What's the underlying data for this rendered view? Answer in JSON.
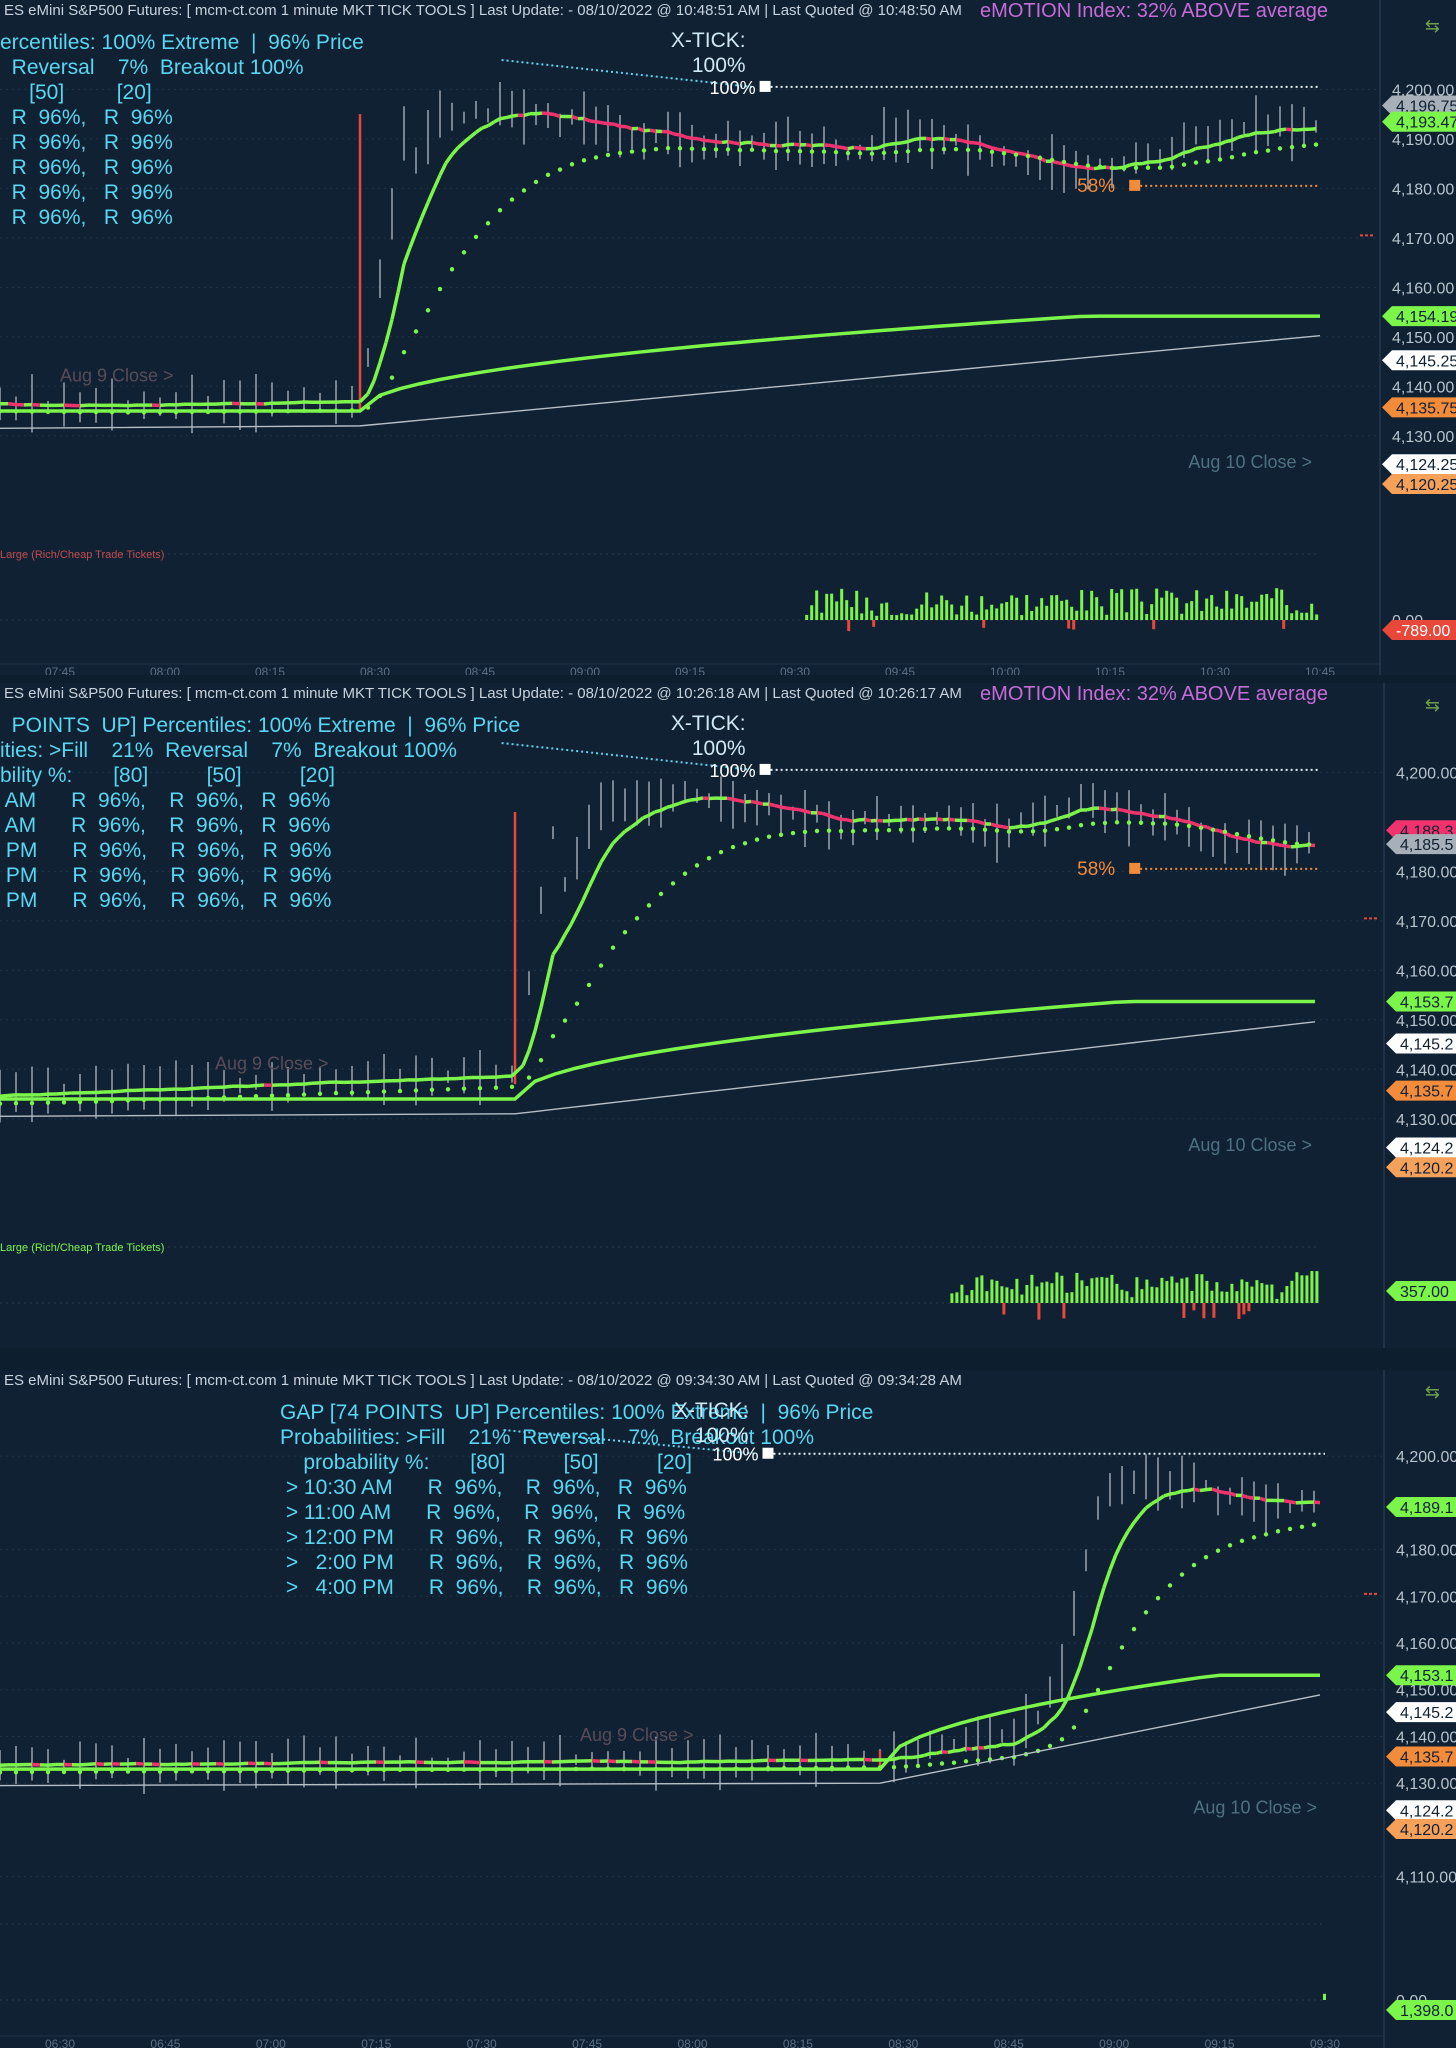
{
  "theme": {
    "bg": "#0f2133",
    "green": "#7cf54a",
    "red": "#f0336e",
    "gray": "#a7b0b8",
    "cyan": "#59d7f2",
    "orange": "#f28b3a",
    "purple": "#c76bd8",
    "neg": "#e8483a"
  },
  "panels": [
    {
      "header": "ES eMini S&P500 Futures: [ mcm-ct.com 1 minute MKT TICK TOOLS ] Last Update:  - 08/10/2022 @ 10:48:51 AM | Last Quoted @ 10:48:50 AM",
      "emotion": "eMOTION Index: 32% ABOVE average",
      "info_lines": [
        "ercentiles: 100% Extreme  |  96% Price",
        "  Reversal    7%  Breakout 100%",
        "     [50]         [20]",
        "  R  96%,   R  96%",
        "  R  96%,   R  96%",
        "  R  96%,   R  96%",
        "  R  96%,   R  96%",
        "  R  96%,   R  96%"
      ],
      "xtick": {
        "label": "X-TICK:",
        "pct": "100%",
        "marker": "100%"
      },
      "pct_label": "58%",
      "aug9_label": "Aug 9 Close >",
      "aug10_label": "Aug 10 Close >",
      "vol_label": "Large (Rich/Cheap Trade Tickets)",
      "price_ticks": [
        "4,200.00",
        "4,190.00",
        "4,180.00",
        "4,170.00",
        "4,160.00",
        "4,150.00",
        "4,140.00",
        "4,130.00"
      ],
      "price_tags": [
        {
          "text": "4,196.75",
          "color": "#a7b0b8"
        },
        {
          "text": "4,193.47",
          "color": "#7cf54a"
        },
        {
          "text": "4,154.19",
          "color": "#7cf54a"
        },
        {
          "text": "4,145.25",
          "color": "#ffffff"
        },
        {
          "text": "4,135.75",
          "color": "#f28b3a"
        },
        {
          "text": "4,124.25",
          "color": "#ffffff"
        },
        {
          "text": "4,120.25",
          "color": "#f5a15a"
        }
      ],
      "vol_ticks": [
        "0.00"
      ],
      "vol_tag": {
        "text": "-789.00",
        "color": "#e8483a"
      },
      "time_labels": [
        "07:45",
        "08:00",
        "08:15",
        "08:30",
        "08:45",
        "09:00",
        "09:15",
        "09:30",
        "09:45",
        "10:00",
        "10:15",
        "10:30",
        "10:45"
      ]
    },
    {
      "header": "ES eMini S&P500 Futures: [ mcm-ct.com 1 minute MKT TICK TOOLS ] Last Update:  - 08/10/2022 @ 10:26:18 AM | Last Quoted @ 10:26:17 AM",
      "emotion": "eMOTION Index: 32% ABOVE average",
      "info_lines": [
        "  POINTS  UP] Percentiles: 100% Extreme  |  96% Price",
        "ities: >Fill    21%  Reversal    7%  Breakout 100%",
        "bility %:       [80]          [50]          [20]",
        " AM      R  96%,    R  96%,   R  96%",
        " AM      R  96%,    R  96%,   R  96%",
        " PM      R  96%,    R  96%,   R  96%",
        " PM      R  96%,    R  96%,   R  96%",
        " PM      R  96%,    R  96%,   R  96%"
      ],
      "xtick": {
        "label": "X-TICK:",
        "pct": "100%",
        "marker": "100%"
      },
      "pct_label": "58%",
      "aug9_label": "Aug 9 Close >",
      "aug10_label": "Aug 10 Close >",
      "vol_label": "Large (Rich/Cheap Trade Tickets)",
      "price_ticks": [
        "4,200.00",
        "4,180.00",
        "4,170.00",
        "4,160.00",
        "4,150.00",
        "4,140.00",
        "4,130.00"
      ],
      "price_tags": [
        {
          "text": "4,188.3",
          "color": "#f0336e"
        },
        {
          "text": "4,185.5",
          "color": "#a7b0b8"
        },
        {
          "text": "4,153.7",
          "color": "#7cf54a"
        },
        {
          "text": "4,145.2",
          "color": "#ffffff"
        },
        {
          "text": "4,135.7",
          "color": "#f28b3a"
        },
        {
          "text": "4,124.2",
          "color": "#ffffff"
        },
        {
          "text": "4,120.2",
          "color": "#f5a15a"
        }
      ],
      "vol_ticks": [],
      "vol_tag": {
        "text": "357.00",
        "color": "#7cf54a"
      },
      "time_labels": [
        "07:30",
        "07:45",
        "08:00",
        "08:15",
        "08:30",
        "08:45",
        "09:00",
        "09:15",
        "09:30",
        "09:45",
        "10:00",
        "10:15",
        "10:30"
      ]
    },
    {
      "header": "ES eMini S&P500 Futures: [ mcm-ct.com 1 minute MKT TICK TOOLS ] Last Update:  - 08/10/2022 @ 09:34:30 AM | Last Quoted @ 09:34:28 AM",
      "emotion": "",
      "info_lines": [
        "GAP [74 POINTS  UP] Percentiles: 100% Extreme  |  96% Price",
        "Probabilities: >Fill    21%  Reversal    7%  Breakout 100%",
        "    probability %:       [80]          [50]          [20]",
        " > 10:30 AM      R  96%,    R  96%,   R  96%",
        " > 11:00 AM      R  96%,    R  96%,   R  96%",
        " > 12:00 PM      R  96%,    R  96%,   R  96%",
        " >   2:00 PM      R  96%,    R  96%,   R  96%",
        " >   4:00 PM      R  96%,    R  96%,   R  96%"
      ],
      "xtick": {
        "label": "X-TICK:",
        "pct": "100%",
        "marker": "100%"
      },
      "pct_label": "",
      "aug9_label": "Aug 9 Close >",
      "aug10_label": "Aug 10 Close >",
      "vol_label": "",
      "price_ticks": [
        "4,200.00",
        "4,180.00",
        "4,170.00",
        "4,160.00",
        "4,150.00",
        "4,140.00",
        "4,130.00",
        "4,110.00"
      ],
      "price_tags": [
        {
          "text": "4,189.1",
          "color": "#7cf54a"
        },
        {
          "text": "4,153.1",
          "color": "#7cf54a"
        },
        {
          "text": "4,145.2",
          "color": "#ffffff"
        },
        {
          "text": "4,135.7",
          "color": "#f28b3a"
        },
        {
          "text": "4,124.2",
          "color": "#ffffff"
        },
        {
          "text": "4,120.2",
          "color": "#f5a15a"
        }
      ],
      "vol_ticks": [
        "0.00"
      ],
      "vol_tag": {
        "text": "1,398.0",
        "color": "#7cf54a"
      },
      "time_labels": [
        "06:30",
        "06:45",
        "07:00",
        "07:15",
        "07:30",
        "07:45",
        "08:00",
        "08:15",
        "08:30",
        "08:45",
        "09:00",
        "09:15",
        "09:30"
      ]
    }
  ],
  "chart_data": [
    {
      "type": "line",
      "title": "ES eMini S&P500 Futures 1 minute",
      "last_update": "10:48:51 AM",
      "y_range": [
        4120,
        4205
      ],
      "series": [
        {
          "name": "price",
          "values": [
            4136,
            4137,
            4138,
            4138,
            4137,
            4160,
            4195,
            4196,
            4192,
            4190,
            4189,
            4188,
            4191,
            4186,
            4183,
            4187,
            4192,
            4193
          ]
        }
      ]
    },
    {
      "type": "line",
      "title": "ES eMini S&P500 Futures 1 minute",
      "last_update": "10:26:18 AM",
      "y_range": [
        4120,
        4205
      ],
      "series": [
        {
          "name": "price",
          "values": [
            4135,
            4136,
            4137,
            4138,
            4139,
            4150,
            4192,
            4196,
            4193,
            4190,
            4191,
            4188,
            4194,
            4190,
            4185,
            4185
          ]
        }
      ]
    },
    {
      "type": "line",
      "title": "ES eMini S&P500 Futures 1 minute",
      "last_update": "09:34:30 AM",
      "y_range": [
        4110,
        4205
      ],
      "series": [
        {
          "name": "price",
          "values": [
            4134,
            4133,
            4134,
            4135,
            4135,
            4136,
            4137,
            4138,
            4139,
            4150,
            4192,
            4196,
            4193,
            4191,
            4189,
            4189
          ]
        }
      ]
    }
  ]
}
